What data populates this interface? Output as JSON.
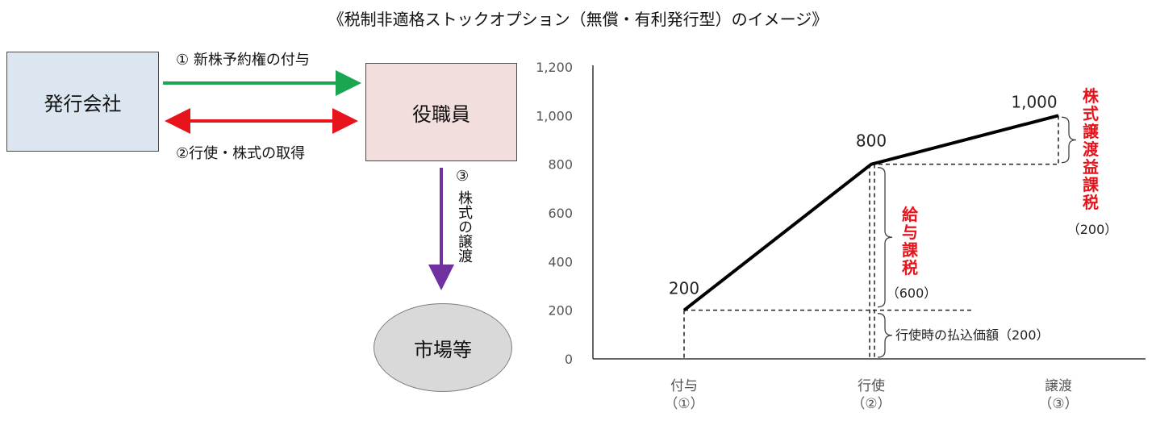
{
  "title": "《税制非適格ストックオプション（無償・有利発行型）のイメージ》",
  "diagram": {
    "company": "発行会社",
    "officer": "役職員",
    "market": "市場等",
    "arrow1_label": "① 新株予約権の付与",
    "arrow2_label": "②行使・株式の取得",
    "arrow3_num": "③",
    "arrow3_label": "株式の譲渡",
    "colors": {
      "arrow1": "#1aa650",
      "arrow2": "#e8141c",
      "arrow3": "#7030a0"
    }
  },
  "chart_data": {
    "type": "line",
    "categories": [
      "付与\n（①）",
      "行使\n（②）",
      "譲渡\n（③）"
    ],
    "values": [
      200,
      800,
      1000
    ],
    "ylim": [
      0,
      1200
    ],
    "yticks": [
      "0",
      "200",
      "400",
      "600",
      "800",
      "1,000",
      "1,200"
    ],
    "data_labels": [
      "200",
      "800",
      "1,000"
    ],
    "grid": false,
    "annotations": {
      "exercise_price": "行使時の払込価額（200）",
      "salary_tax": "給与課税",
      "salary_tax_amount": "（600）",
      "transfer_tax": "株式譲渡益課税",
      "transfer_tax_amount": "（200）"
    },
    "annotation_color": "#e8141c"
  }
}
